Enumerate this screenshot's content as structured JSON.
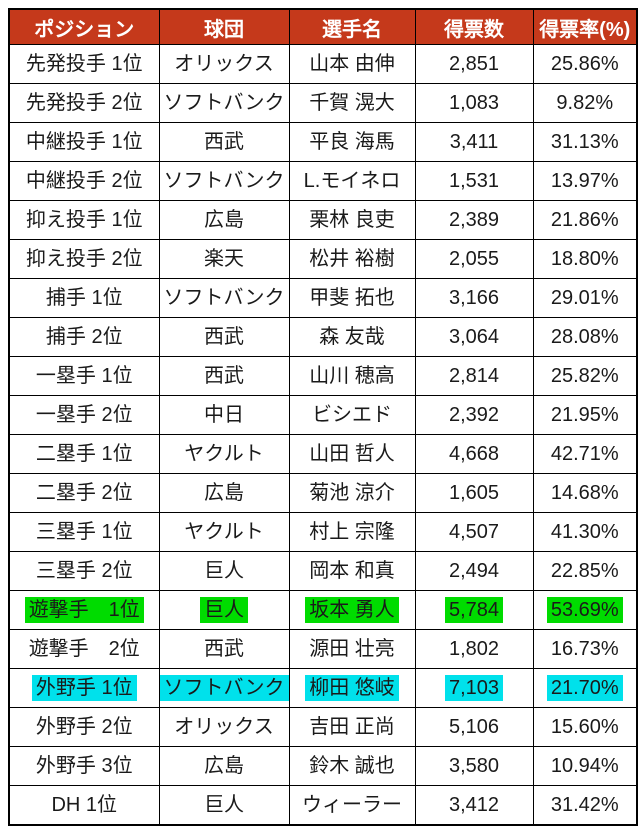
{
  "colors": {
    "header_bg": "#c5391b",
    "highlight_green": "#00dc00",
    "highlight_cyan": "#00e1eb",
    "border": "#000000",
    "header_text": "#ffffff",
    "cell_text": "#1a1a1a"
  },
  "table": {
    "headers": {
      "position": "ポジション",
      "team": "球団",
      "player": "選手名",
      "votes": "得票数",
      "rate": "得票率(%)"
    },
    "rows": [
      {
        "position": "先発投手 1位",
        "team": "オリックス",
        "player": "山本 由伸",
        "votes": "2,851",
        "rate": "25.86%",
        "highlight": "none"
      },
      {
        "position": "先発投手 2位",
        "team": "ソフトバンク",
        "player": "千賀 滉大",
        "votes": "1,083",
        "rate": "9.82%",
        "highlight": "none"
      },
      {
        "position": "中継投手 1位",
        "team": "西武",
        "player": "平良 海馬",
        "votes": "3,411",
        "rate": "31.13%",
        "highlight": "none"
      },
      {
        "position": "中継投手 2位",
        "team": "ソフトバンク",
        "player": "L.モイネロ",
        "votes": "1,531",
        "rate": "13.97%",
        "highlight": "none"
      },
      {
        "position": "抑え投手 1位",
        "team": "広島",
        "player": "栗林 良吏",
        "votes": "2,389",
        "rate": "21.86%",
        "highlight": "none"
      },
      {
        "position": "抑え投手 2位",
        "team": "楽天",
        "player": "松井 裕樹",
        "votes": "2,055",
        "rate": "18.80%",
        "highlight": "none"
      },
      {
        "position": "捕手 1位",
        "team": "ソフトバンク",
        "player": "甲斐 拓也",
        "votes": "3,166",
        "rate": "29.01%",
        "highlight": "none"
      },
      {
        "position": "捕手 2位",
        "team": "西武",
        "player": "森 友哉",
        "votes": "3,064",
        "rate": "28.08%",
        "highlight": "none"
      },
      {
        "position": "一塁手 1位",
        "team": "西武",
        "player": "山川 穂高",
        "votes": "2,814",
        "rate": "25.82%",
        "highlight": "none"
      },
      {
        "position": "一塁手 2位",
        "team": "中日",
        "player": "ビシエド",
        "votes": "2,392",
        "rate": "21.95%",
        "highlight": "none"
      },
      {
        "position": "二塁手 1位",
        "team": "ヤクルト",
        "player": "山田 哲人",
        "votes": "4,668",
        "rate": "42.71%",
        "highlight": "none"
      },
      {
        "position": "二塁手 2位",
        "team": "広島",
        "player": "菊池 涼介",
        "votes": "1,605",
        "rate": "14.68%",
        "highlight": "none"
      },
      {
        "position": "三塁手 1位",
        "team": "ヤクルト",
        "player": "村上 宗隆",
        "votes": "4,507",
        "rate": "41.30%",
        "highlight": "none"
      },
      {
        "position": "三塁手 2位",
        "team": "巨人",
        "player": "岡本 和真",
        "votes": "2,494",
        "rate": "22.85%",
        "highlight": "none"
      },
      {
        "position": "遊撃手　1位",
        "team": "巨人",
        "player": "坂本 勇人",
        "votes": "5,784",
        "rate": "53.69%",
        "highlight": "green"
      },
      {
        "position": "遊撃手　2位",
        "team": "西武",
        "player": "源田 壮亮",
        "votes": "1,802",
        "rate": "16.73%",
        "highlight": "none"
      },
      {
        "position": "外野手 1位",
        "team": "ソフトバンク",
        "player": "柳田 悠岐",
        "votes": "7,103",
        "rate": "21.70%",
        "highlight": "cyan"
      },
      {
        "position": "外野手 2位",
        "team": "オリックス",
        "player": "吉田 正尚",
        "votes": "5,106",
        "rate": "15.60%",
        "highlight": "none"
      },
      {
        "position": "外野手 3位",
        "team": "広島",
        "player": "鈴木 誠也",
        "votes": "3,580",
        "rate": "10.94%",
        "highlight": "none"
      },
      {
        "position": "DH 1位",
        "team": "巨人",
        "player": "ウィーラー",
        "votes": "3,412",
        "rate": "31.42%",
        "highlight": "none"
      }
    ]
  }
}
